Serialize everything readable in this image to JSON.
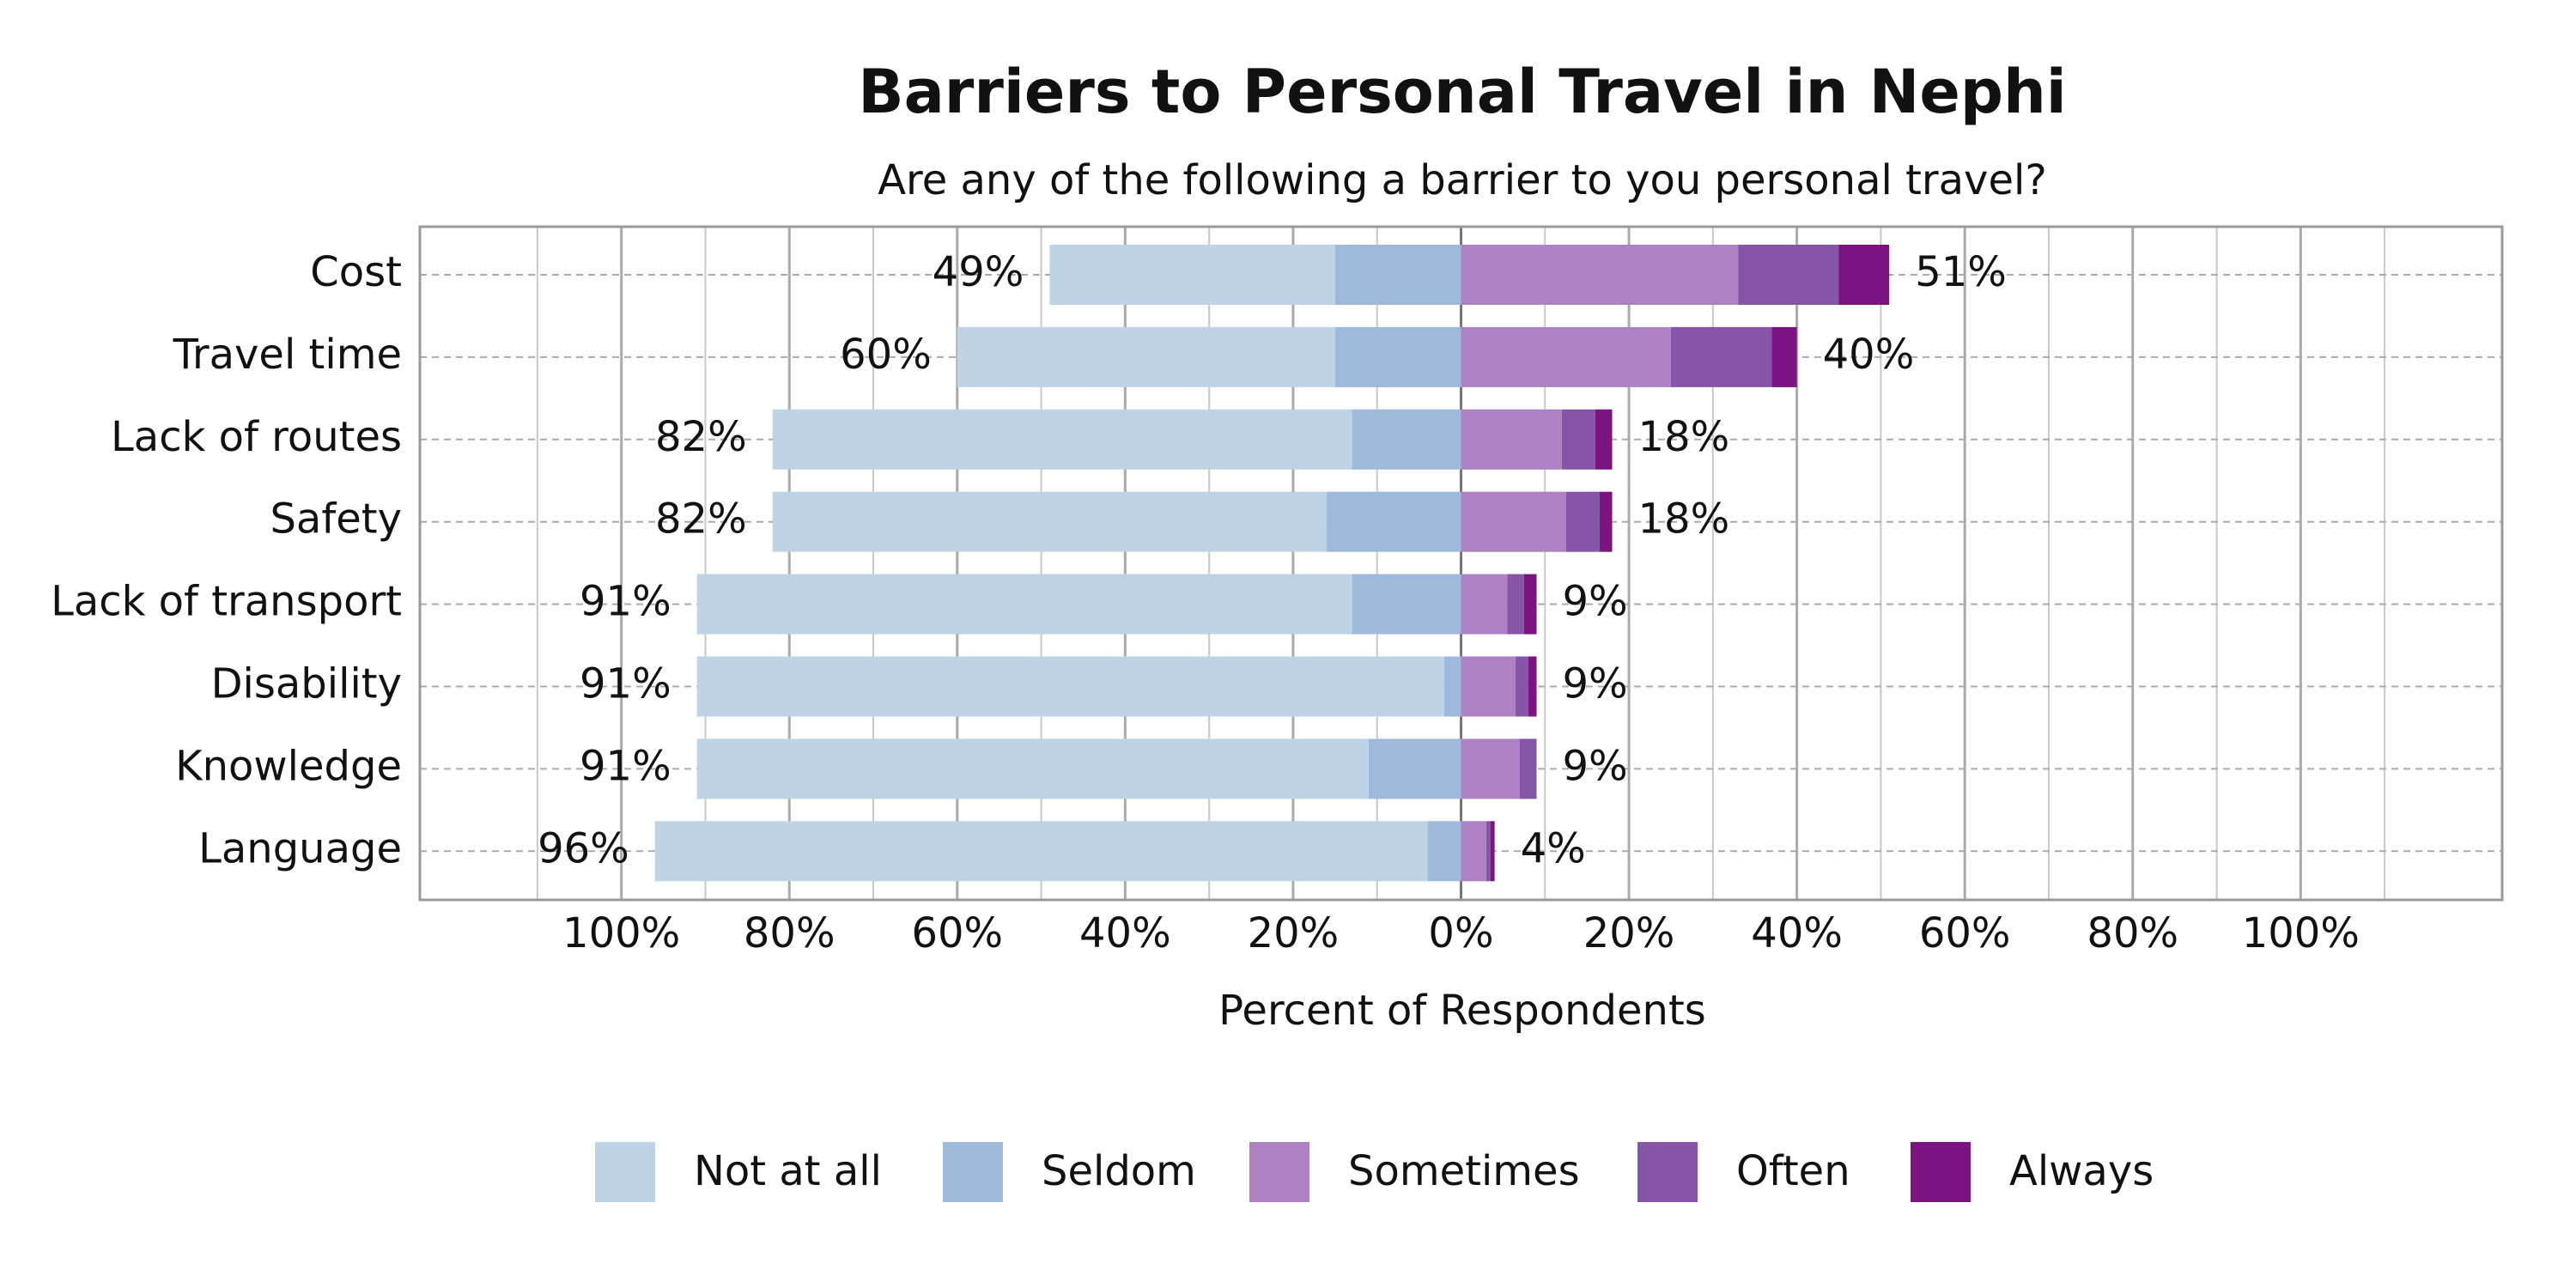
{
  "chart_data": {
    "type": "diverging_bar",
    "title": "Barriers to Personal Travel in Nephi",
    "subtitle": "Are any of the following a barrier to you personal travel?",
    "x_label": "Percent of Respondents",
    "categories": [
      "Cost",
      "Travel time",
      "Lack of routes",
      "Safety",
      "Lack of transport",
      "Disability",
      "Knowledge",
      "Language"
    ],
    "series": [
      {
        "name": "Not at all",
        "color": "#bed3e6",
        "side": "left",
        "values": [
          34,
          45,
          69,
          66,
          78,
          89,
          80,
          92
        ]
      },
      {
        "name": "Seldom",
        "color": "#9dbada",
        "side": "left",
        "values": [
          15,
          15,
          13,
          16,
          13,
          2,
          11,
          4
        ]
      },
      {
        "name": "Sometimes",
        "color": "#ac82c4",
        "side": "right",
        "values": [
          33,
          25,
          12,
          12.5,
          5.5,
          6.5,
          7,
          3
        ]
      },
      {
        "name": "Often",
        "color": "#8655a8",
        "side": "right",
        "values": [
          12,
          12,
          4,
          4,
          2,
          1.5,
          2,
          0.5
        ]
      },
      {
        "name": "Always",
        "color": "#7b1481",
        "side": "right",
        "values": [
          6,
          3,
          2,
          1.5,
          1.5,
          1,
          0,
          0.5
        ]
      }
    ],
    "left_totals": {
      "values": [
        49,
        60,
        82,
        82,
        91,
        91,
        91,
        96
      ],
      "value_labels": [
        "49%",
        "60%",
        "82%",
        "82%",
        "91%",
        "91%",
        "91%",
        "96%"
      ]
    },
    "right_totals": {
      "values": [
        51,
        40,
        18,
        18,
        9,
        9,
        9,
        4
      ],
      "value_labels": [
        "51%",
        "40%",
        "18%",
        "18%",
        "9%",
        "9%",
        "9%",
        "4%"
      ]
    },
    "xlim": [
      -124,
      124
    ],
    "xticks": [
      {
        "value": -100,
        "label": "100%"
      },
      {
        "value": -80,
        "label": "80%"
      },
      {
        "value": -60,
        "label": "60%"
      },
      {
        "value": -40,
        "label": "40%"
      },
      {
        "value": -20,
        "label": "20%"
      },
      {
        "value": 0,
        "label": "0%"
      },
      {
        "value": 20,
        "label": "20%"
      },
      {
        "value": 40,
        "label": "40%"
      },
      {
        "value": 60,
        "label": "60%"
      },
      {
        "value": 80,
        "label": "80%"
      },
      {
        "value": 100,
        "label": "100%"
      }
    ],
    "minor_xticks": [
      -110,
      -90,
      -70,
      -50,
      -30,
      -10,
      10,
      30,
      50,
      70,
      90,
      110
    ],
    "grid": true,
    "legend": "bottom"
  }
}
